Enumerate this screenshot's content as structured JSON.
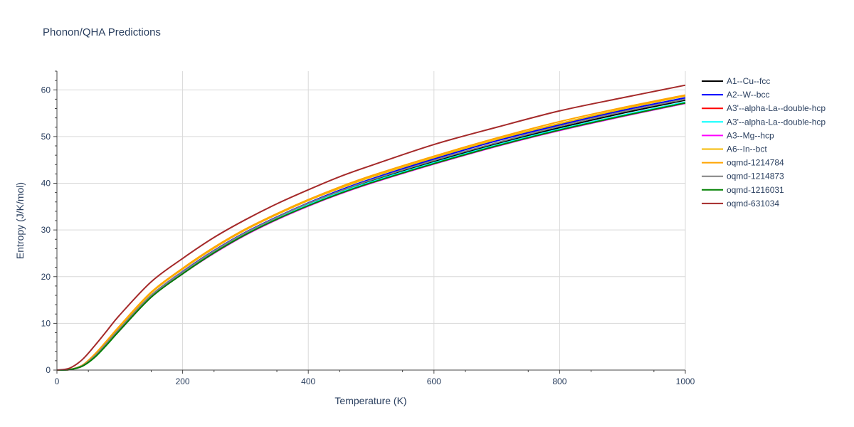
{
  "chart_data": {
    "type": "line",
    "title": "Phonon/QHA Predictions",
    "xlabel": "Temperature (K)",
    "ylabel": "Entropy (J/K/mol)",
    "xlim": [
      0,
      1000
    ],
    "ylim": [
      0,
      64
    ],
    "xticks": [
      0,
      200,
      400,
      600,
      800,
      1000
    ],
    "yticks": [
      0,
      10,
      20,
      30,
      40,
      50,
      60
    ],
    "grid": true,
    "legend_position": "right",
    "x": [
      0,
      20,
      40,
      60,
      80,
      100,
      150,
      200,
      250,
      300,
      350,
      400,
      450,
      500,
      600,
      700,
      800,
      900,
      1000
    ],
    "series": [
      {
        "name": "A1--Cu--fcc",
        "color": "#000000",
        "values": [
          0,
          0.1,
          0.9,
          3.0,
          5.8,
          8.8,
          15.9,
          21.0,
          25.5,
          29.4,
          32.7,
          35.6,
          38.2,
          40.5,
          44.6,
          48.5,
          51.9,
          55.0,
          57.8
        ]
      },
      {
        "name": "A2--W--bcc",
        "color": "#0000ff",
        "values": [
          0,
          0.1,
          1.0,
          3.1,
          5.9,
          8.9,
          16.0,
          21.1,
          25.6,
          29.5,
          32.8,
          35.8,
          38.5,
          40.9,
          45.2,
          49.1,
          52.5,
          55.6,
          58.3
        ]
      },
      {
        "name": "A3'--alpha-La--double-hcp",
        "color": "#ff0000",
        "values": [
          0,
          0.1,
          0.9,
          2.9,
          5.7,
          8.7,
          15.8,
          20.8,
          25.2,
          29.1,
          32.4,
          35.3,
          37.9,
          40.2,
          44.3,
          48.1,
          51.5,
          54.5,
          57.3
        ]
      },
      {
        "name": "A3'--alpha-La--double-hcp",
        "color": "#00ffff",
        "values": [
          0,
          0.1,
          0.9,
          2.9,
          5.7,
          8.7,
          15.9,
          20.9,
          25.3,
          29.2,
          32.5,
          35.4,
          38.0,
          40.3,
          44.4,
          48.2,
          51.6,
          54.6,
          57.4
        ]
      },
      {
        "name": "A3--Mg--hcp",
        "color": "#ff00ff",
        "values": [
          0,
          0.1,
          0.8,
          2.8,
          5.6,
          8.5,
          15.6,
          20.6,
          25.0,
          28.9,
          32.2,
          35.1,
          37.7,
          40.0,
          44.1,
          47.9,
          51.3,
          54.3,
          57.1
        ]
      },
      {
        "name": "A6--In--bct",
        "color": "#f5b800",
        "values": [
          0,
          0.1,
          1.0,
          3.3,
          6.3,
          9.3,
          16.5,
          21.6,
          26.1,
          30.0,
          33.3,
          36.3,
          38.9,
          41.3,
          45.5,
          49.4,
          52.8,
          55.9,
          58.7
        ]
      },
      {
        "name": "oqmd-1214784",
        "color": "#ffa500",
        "values": [
          0,
          0.1,
          1.0,
          3.4,
          6.4,
          9.5,
          16.7,
          21.8,
          26.3,
          30.2,
          33.5,
          36.5,
          39.2,
          41.6,
          45.8,
          49.7,
          53.2,
          56.2,
          58.9
        ]
      },
      {
        "name": "oqmd-1214873",
        "color": "#808080",
        "values": [
          0,
          0.1,
          0.9,
          3.0,
          5.9,
          8.9,
          16.0,
          21.0,
          25.5,
          29.4,
          32.7,
          35.7,
          38.3,
          40.7,
          44.9,
          48.7,
          52.2,
          55.3,
          58.0
        ]
      },
      {
        "name": "oqmd-1216031",
        "color": "#008000",
        "values": [
          0,
          0.1,
          0.8,
          2.7,
          5.5,
          8.5,
          15.6,
          20.6,
          25.1,
          29.0,
          32.3,
          35.2,
          37.8,
          40.1,
          44.2,
          48.0,
          51.4,
          54.4,
          57.2
        ]
      },
      {
        "name": "oqmd-631034",
        "color": "#a52a2a",
        "values": [
          0,
          0.4,
          2.2,
          5.2,
          8.5,
          11.8,
          18.9,
          23.9,
          28.4,
          32.2,
          35.6,
          38.6,
          41.4,
          43.8,
          48.3,
          52.0,
          55.5,
          58.3,
          61.0
        ]
      }
    ]
  }
}
